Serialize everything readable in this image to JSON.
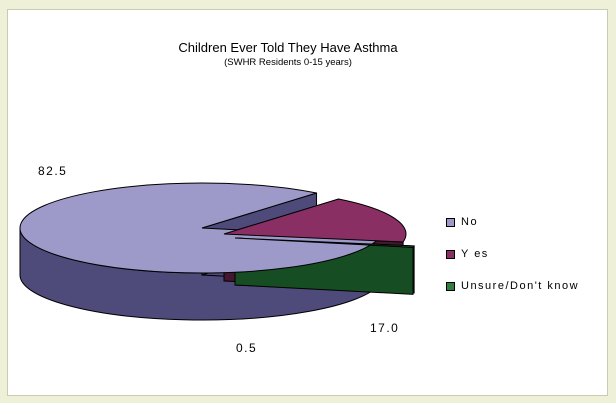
{
  "chart_data": {
    "type": "pie",
    "title": "Children Ever Told They Have Asthma",
    "subtitle": "(SWHR Residents 0-15 years)",
    "categories": [
      "No",
      "Yes",
      "Unsure/Don't know"
    ],
    "values": [
      82.5,
      17.0,
      0.5
    ],
    "value_labels": [
      "82.5",
      "17.0",
      "0.5"
    ],
    "legend_labels": [
      "No",
      "Y es",
      "Unsure/Don't know"
    ],
    "colors": [
      "#9d99c8",
      "#8a2f64",
      "#2f8040"
    ],
    "side_colors": [
      "#4e4a7a",
      "#45162f",
      "#174d22"
    ],
    "style": "3d-exploded",
    "legend_position": "right"
  }
}
